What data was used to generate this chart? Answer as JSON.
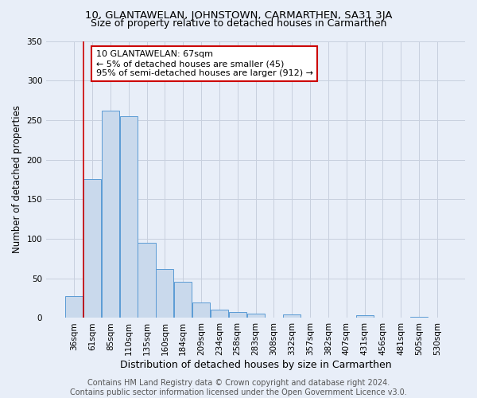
{
  "title": "10, GLANTAWELAN, JOHNSTOWN, CARMARTHEN, SA31 3JA",
  "subtitle": "Size of property relative to detached houses in Carmarthen",
  "xlabel": "Distribution of detached houses by size in Carmarthen",
  "ylabel": "Number of detached properties",
  "bar_labels": [
    "36sqm",
    "61sqm",
    "85sqm",
    "110sqm",
    "135sqm",
    "160sqm",
    "184sqm",
    "209sqm",
    "234sqm",
    "258sqm",
    "283sqm",
    "308sqm",
    "332sqm",
    "357sqm",
    "382sqm",
    "407sqm",
    "431sqm",
    "456sqm",
    "481sqm",
    "505sqm",
    "530sqm"
  ],
  "bar_values": [
    28,
    175,
    262,
    255,
    95,
    62,
    46,
    20,
    11,
    7,
    5,
    0,
    4,
    0,
    0,
    0,
    3,
    0,
    0,
    1,
    0
  ],
  "bar_color": "#c9d9ec",
  "bar_edge_color": "#5b9bd5",
  "vline_color": "#cc0000",
  "vline_x_index": 1,
  "annotation_line1": "10 GLANTAWELAN: 67sqm",
  "annotation_line2": "← 5% of detached houses are smaller (45)",
  "annotation_line3": "95% of semi-detached houses are larger (912) →",
  "annotation_box_color": "#ffffff",
  "annotation_box_edge": "#cc0000",
  "ylim": [
    0,
    350
  ],
  "yticks": [
    0,
    50,
    100,
    150,
    200,
    250,
    300,
    350
  ],
  "grid_color": "#c8d0de",
  "background_color": "#e8eef8",
  "footer_text": "Contains HM Land Registry data © Crown copyright and database right 2024.\nContains public sector information licensed under the Open Government Licence v3.0.",
  "title_fontsize": 9.5,
  "subtitle_fontsize": 9,
  "xlabel_fontsize": 9,
  "ylabel_fontsize": 8.5,
  "tick_fontsize": 7.5,
  "annotation_fontsize": 8,
  "footer_fontsize": 7
}
